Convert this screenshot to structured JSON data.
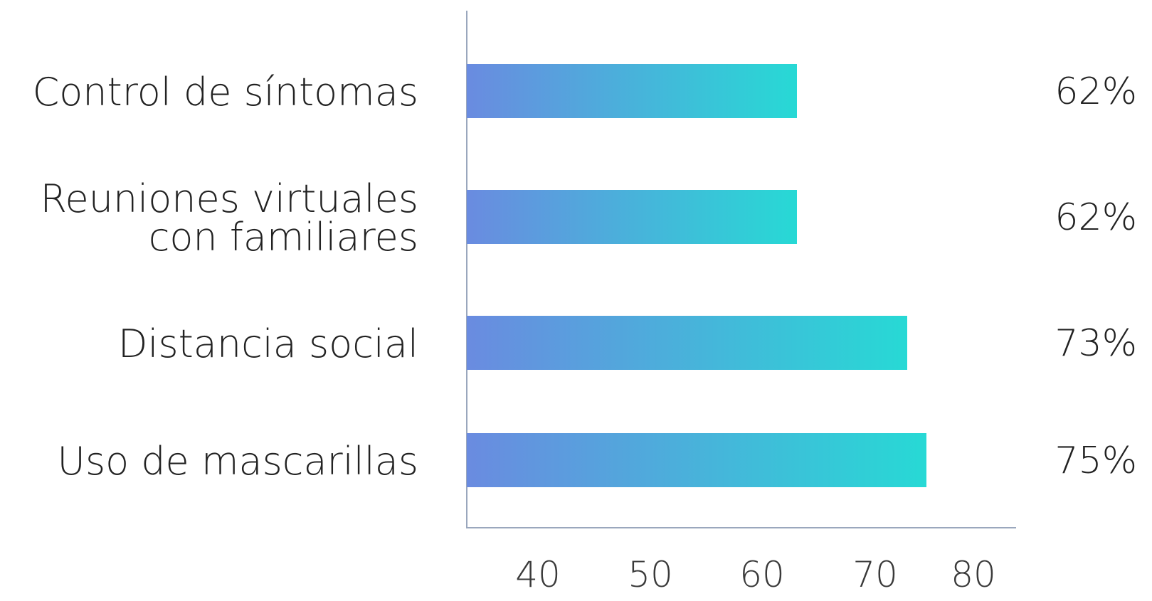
{
  "chart_data": {
    "type": "bar",
    "orientation": "horizontal",
    "categories": [
      [
        "Control de síntomas"
      ],
      [
        "Reuniones virtuales",
        "con familiares"
      ],
      [
        "Distancia social"
      ],
      [
        "Uso de mascarillas"
      ]
    ],
    "values": [
      62,
      62,
      73,
      75
    ],
    "value_labels": [
      "62%",
      "62%",
      "73%",
      "75%"
    ],
    "x_ticks": [
      "40",
      "50",
      "60",
      "70",
      "80"
    ],
    "x_tick_values": [
      40,
      50,
      60,
      70,
      80
    ],
    "title": "",
    "xlabel": "",
    "ylabel": "",
    "grid": false,
    "colors": {
      "bar_gradient_start": "#6a8be0",
      "bar_gradient_end": "#27d9d5",
      "axis": "#9aa7bd",
      "text": "#222222"
    }
  }
}
